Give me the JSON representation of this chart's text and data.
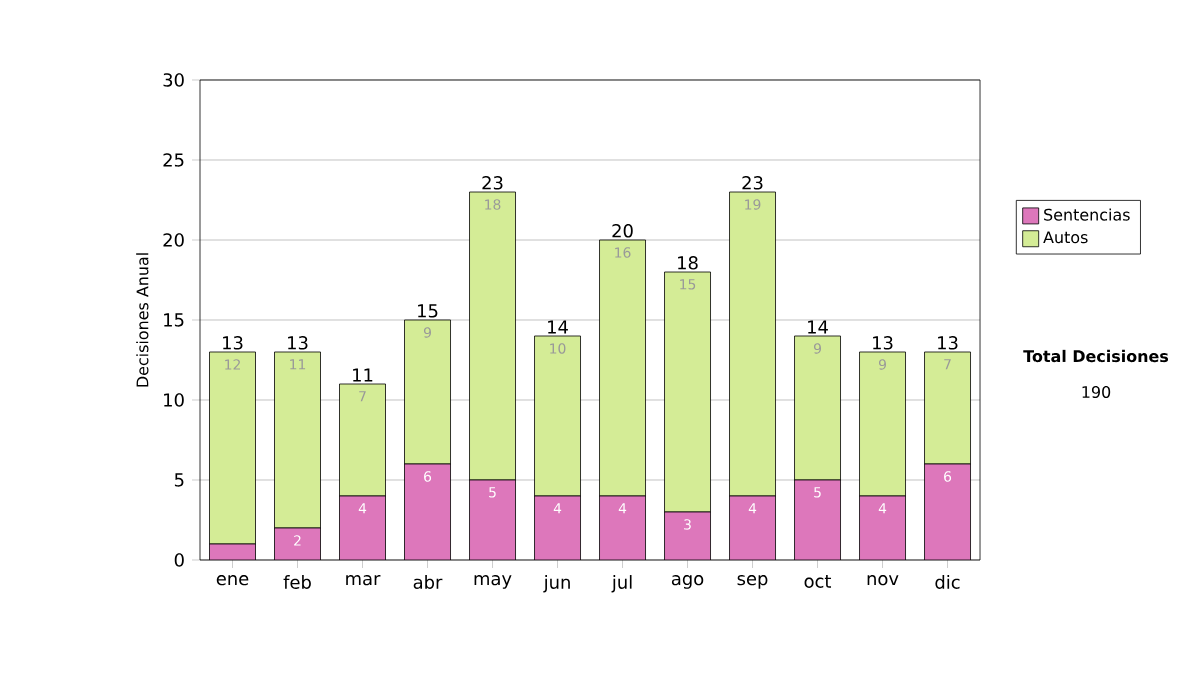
{
  "chart_data": {
    "type": "bar",
    "stacked": true,
    "categories": [
      "ene",
      "feb",
      "mar",
      "abr",
      "may",
      "jun",
      "jul",
      "ago",
      "sep",
      "oct",
      "nov",
      "dic"
    ],
    "series": [
      {
        "name": "Sentencias",
        "color": "#dd77bb",
        "values": [
          1,
          2,
          4,
          6,
          5,
          4,
          4,
          3,
          4,
          5,
          4,
          6
        ],
        "value_labels": [
          null,
          "2",
          "4",
          "6",
          "5",
          "4",
          "4",
          "3",
          "4",
          "5",
          "4",
          "6"
        ]
      },
      {
        "name": "Autos",
        "color": "#d4ec96",
        "values": [
          12,
          11,
          7,
          9,
          18,
          10,
          16,
          15,
          19,
          9,
          9,
          7
        ],
        "value_labels": [
          "12",
          "11",
          "7",
          "9",
          "18",
          "10",
          "16",
          "15",
          "19",
          "9",
          "9",
          "7"
        ]
      }
    ],
    "totals": [
      "13",
      "13",
      "11",
      "15",
      "23",
      "14",
      "20",
      "18",
      "23",
      "14",
      "13",
      "13"
    ],
    "ylabel": "Decisiones Anual",
    "ylim": [
      0,
      30
    ],
    "yticks": [
      0,
      5,
      10,
      15,
      20,
      25,
      30
    ],
    "grid": "y",
    "legend": "right",
    "annotations": [
      "Total Decisiones",
      "190"
    ]
  }
}
